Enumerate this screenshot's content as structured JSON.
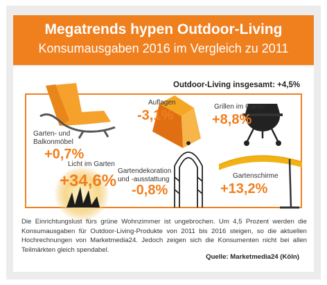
{
  "header": {
    "title": "Megatrends hypen Outdoor-Living",
    "subtitle": "Konsumausgaben 2016 im Vergleich zu 2011"
  },
  "total_label": "Outdoor-Living insgesamt: +4,5%",
  "chart_data": {
    "type": "infographic",
    "title": "Megatrends hypen Outdoor-Living",
    "subtitle": "Konsumausgaben 2016 im Vergleich zu 2011",
    "unit": "%",
    "total": {
      "label": "Outdoor-Living insgesamt",
      "value": 4.5,
      "display": "+4,5%"
    },
    "categories": [
      "Garten- und Balkonmöbel",
      "Auflagen",
      "Grillen im Garten",
      "Licht im Garten",
      "Gartendekoration und -ausstattung",
      "Gartenschirme"
    ],
    "values": [
      0.7,
      -3.1,
      8.8,
      34.6,
      -0.8,
      13.2
    ],
    "display_values": [
      "+0,7%",
      "-3,1%",
      "+8,8%",
      "+34,6%",
      "-0,8%",
      "+13,2%"
    ]
  },
  "labels": {
    "garten_line1": "Garten- und",
    "garten_line2": "Balkonmöbel",
    "auflagen": "Auflagen",
    "grillen": "Grillen im Garten",
    "licht": "Licht im Garten",
    "deko_line1": "Gartendekoration",
    "deko_line2": "und -ausstattung",
    "schirme": "Gartenschirme"
  },
  "colors": {
    "accent": "#f07f1e",
    "background": "#ececec",
    "text": "#333333"
  },
  "icons": [
    "sun-lounger-icon",
    "cushion-icon",
    "grill-icon",
    "sunset-lamp-icon",
    "garden-arch-icon",
    "parasol-icon"
  ],
  "description": "Die Einrichtungslust fürs grüne Wohnzimmer ist ungebrochen. Um 4,5 Prozent werden die Konsumausgaben für Outdoor-Living-Produkte von 2011 bis 2016 steigen, so die aktuellen Hochrechnungen von Marketmedia24. Jedoch zeigen sich die Konsumenten nicht bei allen Teilmärkten gleich spendabel.",
  "source": "Quelle: Marketmedia24 (Köln)"
}
